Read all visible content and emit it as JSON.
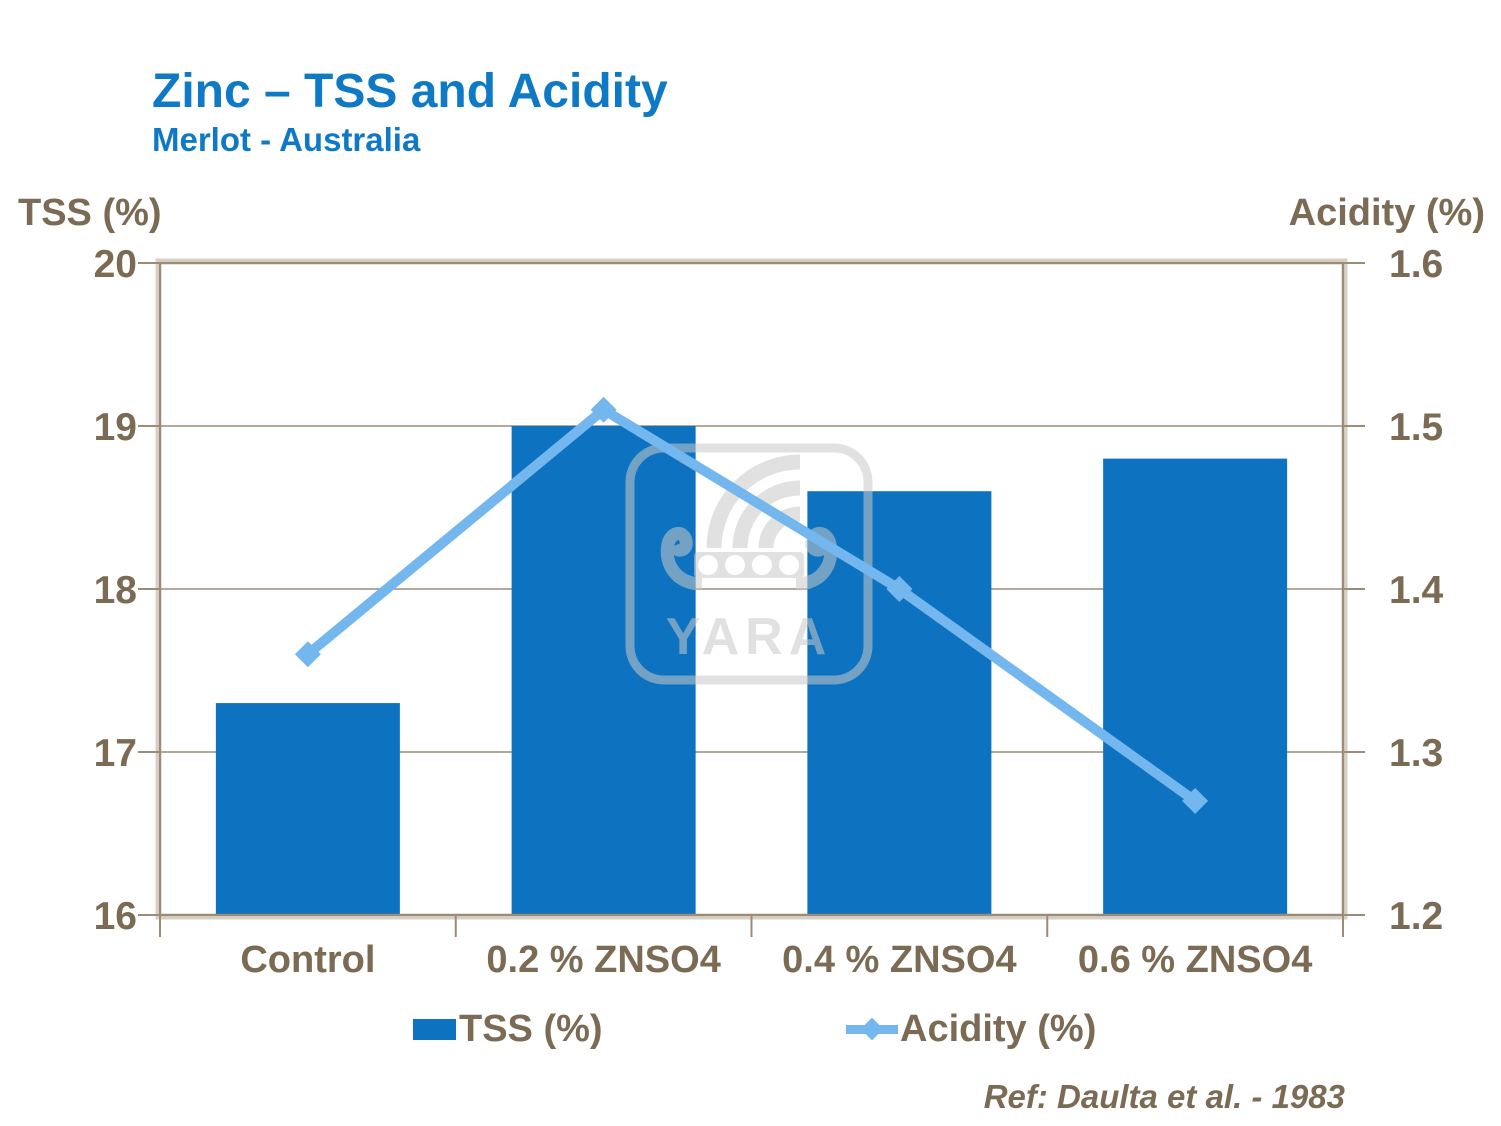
{
  "header": {
    "title": "Zinc – TSS and Acidity",
    "subtitle": "Merlot - Australia"
  },
  "footer": {
    "ref_note": "Ref: Daulta et al. - 1983"
  },
  "watermark_text": "YARA",
  "colors": {
    "title_blue": "#0e7ac6",
    "bar_blue": "#0d73c0",
    "line_blue": "#74b7ef",
    "axis_text_brown": "#7c6b54",
    "frame_brown": "#9c8c77",
    "watermark_gray": "#c9c9c9"
  },
  "legend": {
    "items": [
      {
        "label": "TSS (%)",
        "marker": "bar-swatch"
      },
      {
        "label": "Acidity (%)",
        "marker": "line-diamond"
      }
    ]
  },
  "chart_data": {
    "type": "combo-bar-line",
    "categories": [
      "Control",
      "0.2 % ZNSO4",
      "0.4 % ZNSO4",
      "0.6 % ZNSO4"
    ],
    "series": [
      {
        "name": "TSS (%)",
        "type": "bar",
        "axis": "left",
        "values": [
          17.3,
          19.0,
          18.6,
          18.8
        ]
      },
      {
        "name": "Acidity (%)",
        "type": "line",
        "axis": "right",
        "values": [
          1.36,
          1.51,
          1.4,
          1.27
        ]
      }
    ],
    "left_axis": {
      "title": "TSS (%)",
      "min": 16,
      "max": 20,
      "ticks": [
        20,
        19,
        18,
        17,
        16
      ]
    },
    "right_axis": {
      "title": "Acidity (%)",
      "min": 1.2,
      "max": 1.6,
      "ticks": [
        "1.6",
        "1.5",
        "1.4",
        "1.3",
        "1.2"
      ]
    },
    "grid": true,
    "legend_position": "bottom"
  }
}
